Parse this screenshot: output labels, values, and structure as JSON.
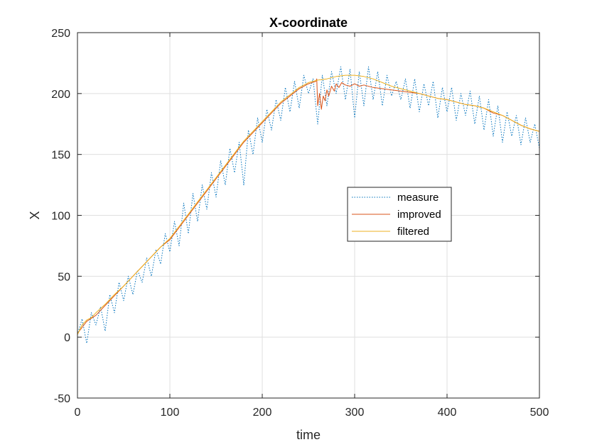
{
  "chart_data": {
    "type": "line",
    "title": "X-coordinate",
    "xlabel": "time",
    "ylabel": "X",
    "xlim": [
      0,
      500
    ],
    "ylim": [
      -50,
      250
    ],
    "xticks": [
      0,
      100,
      200,
      300,
      400,
      500
    ],
    "yticks": [
      -50,
      0,
      50,
      100,
      150,
      200,
      250
    ],
    "grid": true,
    "legend_position": "center-right",
    "series": [
      {
        "name": "measure",
        "color": "#0072BD",
        "style": "dotted",
        "x": [
          0,
          5,
          10,
          15,
          20,
          25,
          30,
          35,
          40,
          45,
          50,
          55,
          60,
          65,
          70,
          75,
          80,
          85,
          90,
          95,
          100,
          105,
          110,
          115,
          120,
          125,
          130,
          135,
          140,
          145,
          150,
          155,
          160,
          165,
          170,
          175,
          180,
          185,
          190,
          195,
          200,
          205,
          210,
          215,
          220,
          225,
          230,
          235,
          240,
          245,
          250,
          255,
          260,
          265,
          270,
          275,
          280,
          285,
          290,
          295,
          300,
          305,
          310,
          315,
          320,
          325,
          330,
          335,
          340,
          345,
          350,
          355,
          360,
          365,
          370,
          375,
          380,
          385,
          390,
          395,
          400,
          405,
          410,
          415,
          420,
          425,
          430,
          435,
          440,
          445,
          450,
          455,
          460,
          465,
          470,
          475,
          480,
          485,
          490,
          495,
          500
        ],
        "y": [
          2,
          15,
          -5,
          20,
          10,
          25,
          5,
          35,
          20,
          45,
          30,
          50,
          35,
          55,
          45,
          65,
          50,
          72,
          60,
          85,
          70,
          95,
          75,
          110,
          85,
          118,
          95,
          125,
          105,
          135,
          115,
          145,
          125,
          155,
          135,
          160,
          125,
          170,
          150,
          180,
          160,
          187,
          170,
          195,
          178,
          205,
          185,
          210,
          188,
          215,
          200,
          212,
          175,
          215,
          190,
          218,
          200,
          222,
          195,
          220,
          180,
          218,
          190,
          222,
          195,
          218,
          190,
          215,
          198,
          210,
          195,
          212,
          188,
          212,
          185,
          208,
          190,
          210,
          180,
          205,
          185,
          205,
          178,
          200,
          182,
          202,
          175,
          198,
          170,
          195,
          165,
          190,
          160,
          185,
          165,
          182,
          158,
          180,
          160,
          175,
          155
        ]
      },
      {
        "name": "improved",
        "color": "#D95319",
        "style": "solid",
        "x": [
          0,
          10,
          20,
          30,
          40,
          50,
          60,
          70,
          80,
          90,
          100,
          110,
          120,
          130,
          140,
          150,
          160,
          170,
          180,
          190,
          200,
          210,
          220,
          230,
          240,
          250,
          258,
          259,
          260,
          262,
          264,
          266,
          268,
          270,
          272,
          275,
          278,
          280,
          283,
          286,
          290,
          295,
          300,
          305,
          310,
          320,
          330,
          340,
          350,
          360,
          370,
          380,
          390,
          400,
          410,
          420,
          430,
          440,
          450,
          460,
          470,
          480,
          490,
          500
        ],
        "y": [
          3,
          13,
          18,
          26,
          34,
          42,
          50,
          58,
          66,
          74,
          80,
          90,
          100,
          110,
          120,
          130,
          140,
          150,
          160,
          168,
          176,
          184,
          192,
          198,
          204,
          208,
          210,
          212,
          190,
          200,
          187,
          198,
          194,
          203,
          198,
          206,
          202,
          208,
          205,
          209,
          207,
          206,
          208,
          206,
          207,
          205,
          204,
          203,
          202,
          201,
          200,
          198,
          196,
          195,
          193,
          191,
          190,
          188,
          184,
          182,
          178,
          174,
          171,
          169
        ]
      },
      {
        "name": "filtered",
        "color": "#EDB120",
        "style": "solid",
        "x": [
          0,
          5,
          10,
          15,
          20,
          30,
          40,
          50,
          60,
          70,
          80,
          90,
          100,
          110,
          120,
          130,
          140,
          150,
          160,
          170,
          180,
          190,
          200,
          210,
          220,
          230,
          240,
          250,
          260,
          270,
          280,
          290,
          300,
          310,
          320,
          330,
          340,
          350,
          360,
          370,
          380,
          390,
          400,
          410,
          420,
          430,
          440,
          450,
          460,
          470,
          480,
          490,
          500
        ],
        "y": [
          2,
          10,
          14,
          16,
          20,
          27,
          35,
          42,
          50,
          58,
          66,
          74,
          81,
          91,
          101,
          111,
          121,
          131,
          141,
          151,
          161,
          169,
          177,
          185,
          193,
          199,
          205,
          209,
          211,
          212,
          214,
          215,
          215,
          214,
          212,
          209,
          206,
          204,
          202,
          200,
          198,
          196,
          195,
          193,
          191,
          190,
          188,
          185,
          182,
          178,
          174,
          171,
          169
        ]
      }
    ]
  }
}
